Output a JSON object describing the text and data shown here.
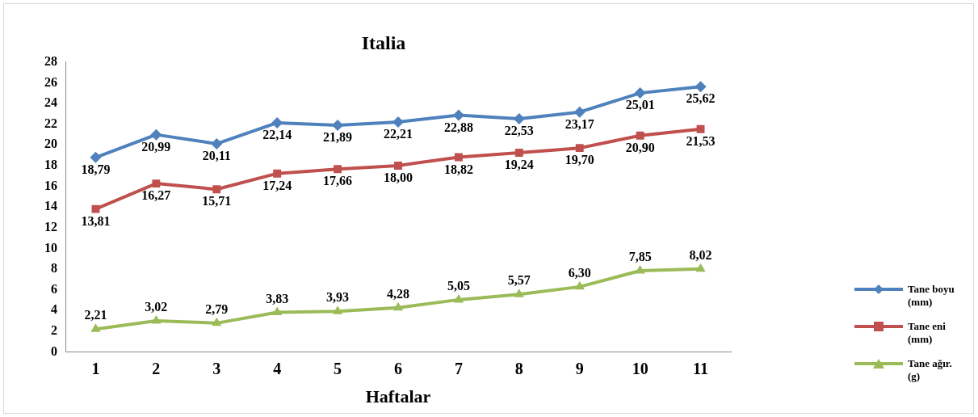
{
  "chart_data": {
    "type": "line",
    "title": "Italia",
    "xlabel": "Haftalar",
    "categories": [
      "1",
      "2",
      "3",
      "4",
      "5",
      "6",
      "7",
      "8",
      "9",
      "10",
      "11"
    ],
    "series": [
      {
        "name": "Tane boyu (mm)",
        "color": "#4f81bd",
        "marker": "diamond",
        "values": [
          18.79,
          20.99,
          20.11,
          22.14,
          21.89,
          22.21,
          22.88,
          22.53,
          23.17,
          25.01,
          25.62
        ],
        "value_labels": [
          "18,79",
          "20,99",
          "20,11",
          "22,14",
          "21,89",
          "22,21",
          "22,88",
          "22,53",
          "23,17",
          "25,01",
          "25,62"
        ]
      },
      {
        "name": "Tane eni (mm)",
        "color": "#c0504d",
        "marker": "square",
        "values": [
          13.81,
          16.27,
          15.71,
          17.24,
          17.66,
          18.0,
          18.82,
          19.24,
          19.7,
          20.9,
          21.53
        ],
        "value_labels": [
          "13,81",
          "16,27",
          "15,71",
          "17,24",
          "17,66",
          "18,00",
          "18,82",
          "19,24",
          "19,70",
          "20,90",
          "21,53"
        ]
      },
      {
        "name": "Tane ağır. (g)",
        "color": "#9bbb59",
        "marker": "triangle",
        "values": [
          2.21,
          3.02,
          2.79,
          3.83,
          3.93,
          4.28,
          5.05,
          5.57,
          6.3,
          7.85,
          8.02
        ],
        "value_labels": [
          "2,21",
          "3,02",
          "2,79",
          "3,83",
          "3,93",
          "4,28",
          "5,05",
          "5,57",
          "6,30",
          "7,85",
          "8,02"
        ]
      }
    ],
    "ylim": [
      0,
      28
    ],
    "yticks": [
      0,
      2,
      4,
      6,
      8,
      10,
      12,
      14,
      16,
      18,
      20,
      22,
      24,
      26,
      28
    ],
    "grid": false,
    "legend": "right",
    "line_style": "solid"
  }
}
